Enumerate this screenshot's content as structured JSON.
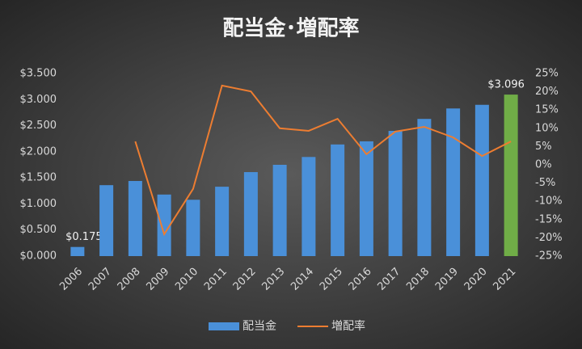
{
  "chart_data": {
    "type": "bar-line",
    "title": "配当金･増配率",
    "categories": [
      "2006",
      "2007",
      "2008",
      "2009",
      "2010",
      "2011",
      "2012",
      "2013",
      "2014",
      "2015",
      "2016",
      "2017",
      "2018",
      "2019",
      "2020",
      "2021"
    ],
    "series": [
      {
        "name": "配当金",
        "type": "bar",
        "color": "#4a90d9",
        "colors": [
          "#4a90d9",
          "#4a90d9",
          "#4a90d9",
          "#4a90d9",
          "#4a90d9",
          "#4a90d9",
          "#4a90d9",
          "#4a90d9",
          "#4a90d9",
          "#4a90d9",
          "#4a90d9",
          "#4a90d9",
          "#4a90d9",
          "#4a90d9",
          "#4a90d9",
          "#70ad47"
        ],
        "values": [
          0.175,
          1.36,
          1.44,
          1.18,
          1.08,
          1.33,
          1.61,
          1.75,
          1.9,
          2.14,
          2.2,
          2.4,
          2.63,
          2.83,
          2.9,
          3.096
        ],
        "value_labels": [
          "$0.175",
          null,
          null,
          null,
          null,
          null,
          null,
          null,
          null,
          null,
          null,
          null,
          null,
          null,
          null,
          "$3.096"
        ]
      },
      {
        "name": "増配率",
        "type": "line",
        "axis": "y2",
        "color": "#ed7d31",
        "values": [
          null,
          null,
          6.4,
          -19,
          -6.6,
          21.7,
          20.1,
          10,
          9.3,
          12.6,
          2.9,
          9.1,
          10.4,
          7.5,
          2.4,
          6.4
        ]
      }
    ],
    "ylim": [
      0,
      3.5
    ],
    "yticks": [
      {
        "value": 0,
        "label": "$0.000"
      },
      {
        "value": 0.5,
        "label": "$0.500"
      },
      {
        "value": 1,
        "label": "$1.000"
      },
      {
        "value": 1.5,
        "label": "$1.500"
      },
      {
        "value": 2,
        "label": "$2.000"
      },
      {
        "value": 2.5,
        "label": "$2.500"
      },
      {
        "value": 3,
        "label": "$3.000"
      },
      {
        "value": 3.5,
        "label": "$3.500"
      }
    ],
    "y2lim": [
      -25,
      25
    ],
    "y2ticks": [
      {
        "value": -25,
        "label": "-25%"
      },
      {
        "value": -20,
        "label": "-20%"
      },
      {
        "value": -15,
        "label": "-15%"
      },
      {
        "value": -10,
        "label": "-10%"
      },
      {
        "value": -5,
        "label": "-5%"
      },
      {
        "value": 0,
        "label": "0%"
      },
      {
        "value": 5,
        "label": "5%"
      },
      {
        "value": 10,
        "label": "10%"
      },
      {
        "value": 15,
        "label": "15%"
      },
      {
        "value": 20,
        "label": "20%"
      },
      {
        "value": 25,
        "label": "25%"
      }
    ],
    "legend": "bottom"
  }
}
